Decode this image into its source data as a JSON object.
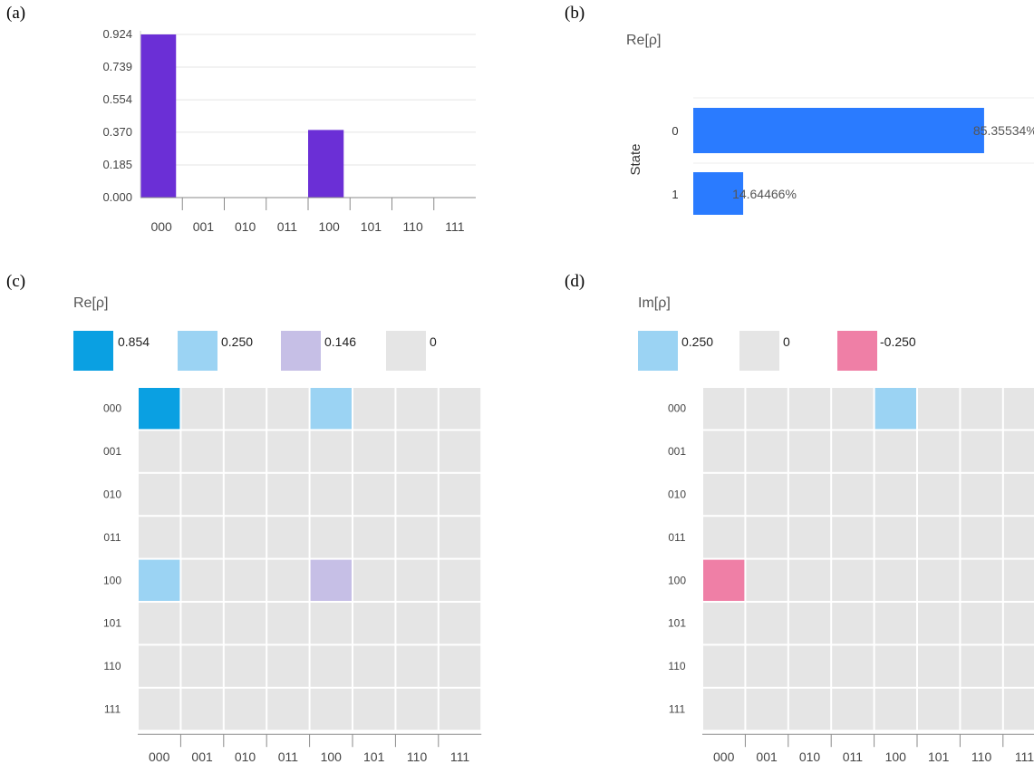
{
  "panels": {
    "a": {
      "letter": "(a)"
    },
    "b": {
      "letter": "(b)",
      "header": "Re[ρ]"
    },
    "c": {
      "letter": "(c)",
      "header": "Re[ρ]"
    },
    "d": {
      "letter": "(d)",
      "header": "Im[ρ]"
    }
  },
  "chart_data": [
    {
      "panel": "a",
      "type": "bar",
      "categories": [
        "000",
        "001",
        "010",
        "011",
        "100",
        "101",
        "110",
        "111"
      ],
      "values": [
        0.924,
        0,
        0,
        0,
        0.383,
        0,
        0,
        0
      ],
      "yticks": [
        "0.000",
        "0.185",
        "0.370",
        "0.554",
        "0.739",
        "0.924"
      ],
      "ylim": [
        0,
        0.924
      ],
      "grid": true,
      "color": "#6b2fd6"
    },
    {
      "panel": "b",
      "type": "bar",
      "orientation": "horizontal",
      "title": "Re[ρ]",
      "ylabel": "State",
      "categories": [
        "0",
        "1"
      ],
      "values": [
        85.35534,
        14.64466
      ],
      "value_labels": [
        "85.35534%",
        "14.64466%"
      ],
      "xlim": [
        0,
        100
      ],
      "color": "#2a7bff"
    },
    {
      "panel": "c",
      "type": "heatmap",
      "title": "Re[ρ]",
      "labels": [
        "000",
        "001",
        "010",
        "011",
        "100",
        "101",
        "110",
        "111"
      ],
      "legend": [
        {
          "label": "0.854",
          "color": "#0aa0e2"
        },
        {
          "label": "0.250",
          "color": "#9bd3f3"
        },
        {
          "label": "0.146",
          "color": "#c6bfe6"
        },
        {
          "label": "0",
          "color": "#e5e5e5"
        }
      ],
      "cells": [
        {
          "row": 0,
          "col": 0,
          "value": 0.854
        },
        {
          "row": 0,
          "col": 4,
          "value": 0.25
        },
        {
          "row": 4,
          "col": 0,
          "value": 0.25
        },
        {
          "row": 4,
          "col": 4,
          "value": 0.146
        }
      ]
    },
    {
      "panel": "d",
      "type": "heatmap",
      "title": "Im[ρ]",
      "labels": [
        "000",
        "001",
        "010",
        "011",
        "100",
        "101",
        "110",
        "111"
      ],
      "legend": [
        {
          "label": "0.250",
          "color": "#9bd3f3"
        },
        {
          "label": "0",
          "color": "#e5e5e5"
        },
        {
          "label": "-0.250",
          "color": "#ef7fa6"
        }
      ],
      "cells": [
        {
          "row": 0,
          "col": 4,
          "value": 0.25
        },
        {
          "row": 4,
          "col": 0,
          "value": -0.25
        }
      ]
    }
  ]
}
